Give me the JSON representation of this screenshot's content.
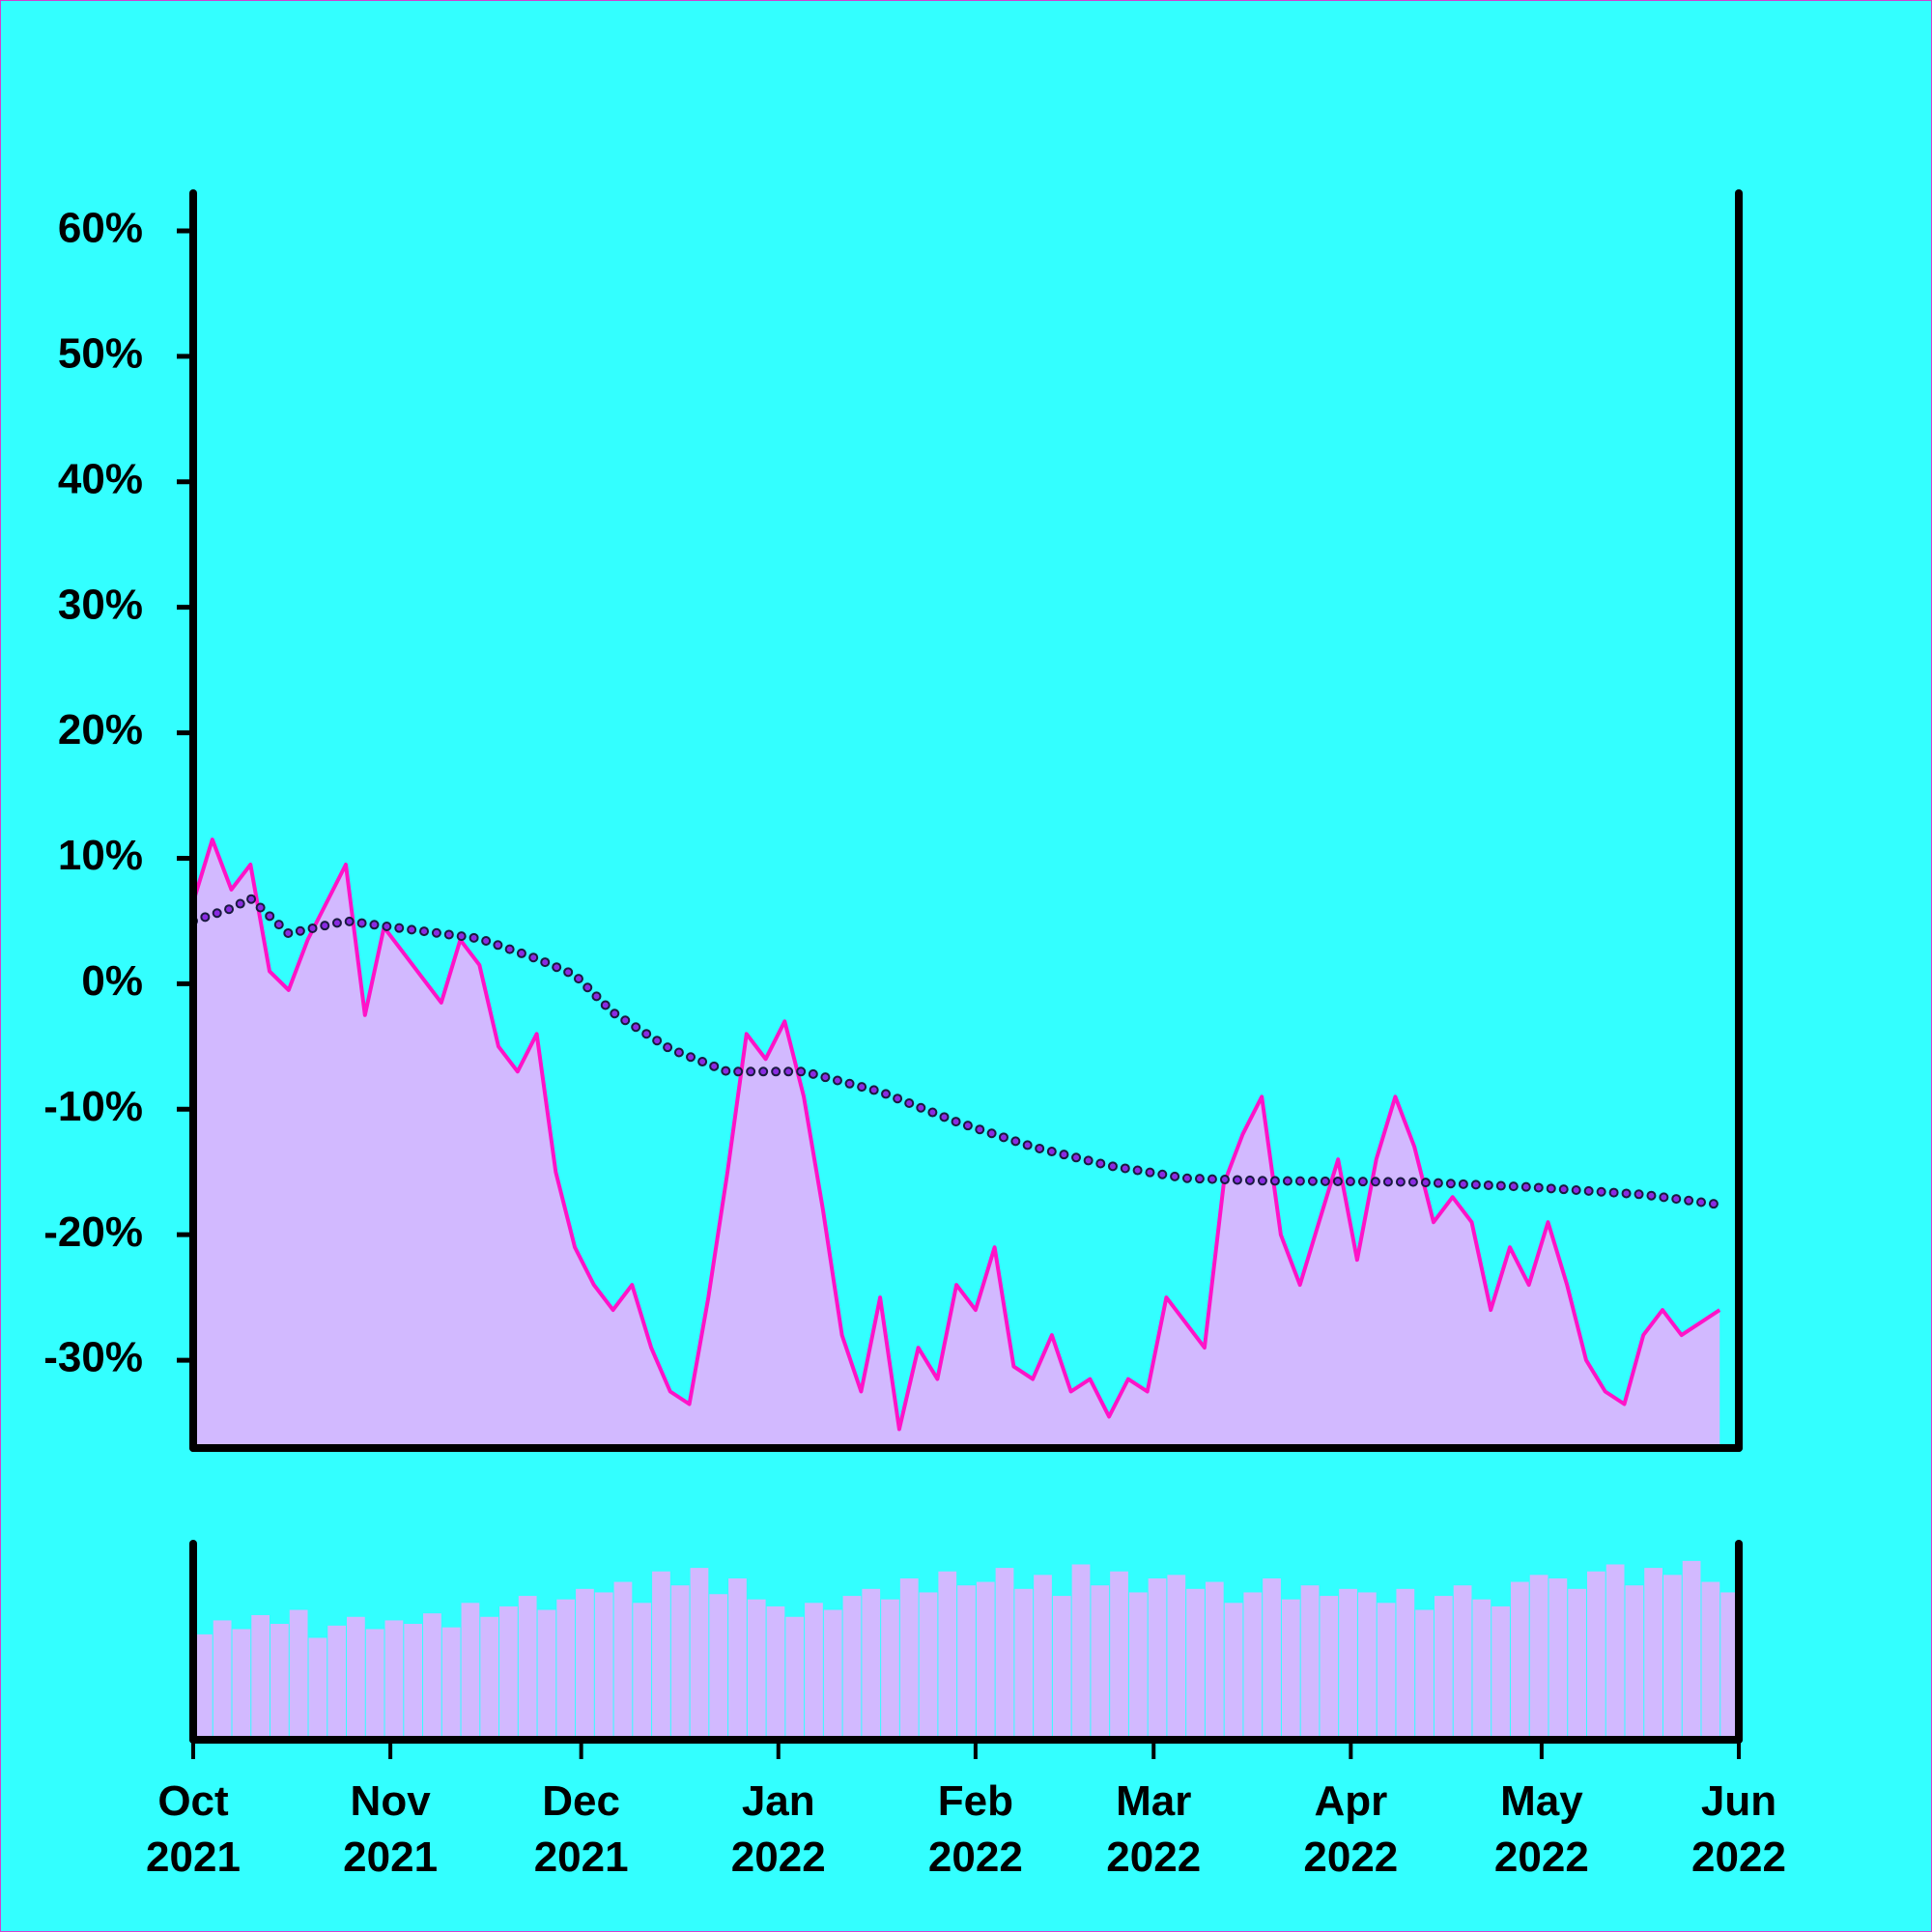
{
  "chart_data": {
    "type": "line",
    "x": [
      0,
      3,
      6,
      9,
      12,
      15,
      18,
      21,
      24,
      27,
      30,
      33,
      36,
      39,
      42,
      45,
      48,
      51,
      54,
      57,
      60,
      63,
      66,
      69,
      72,
      75,
      78,
      81,
      84,
      87,
      90,
      93,
      96,
      99,
      102,
      105,
      108,
      111,
      114,
      117,
      120,
      123,
      126,
      129,
      132,
      135,
      138,
      141,
      144,
      147,
      150,
      153,
      156,
      159,
      162,
      165,
      168,
      171,
      174,
      177,
      180,
      183,
      186,
      189,
      192,
      195,
      198,
      201,
      204,
      207,
      210,
      213,
      216,
      219,
      222,
      225,
      228,
      231,
      234,
      237,
      240
    ],
    "xlim": [
      0,
      243
    ],
    "xticks": [
      {
        "value": 0,
        "label": "Oct\n2021"
      },
      {
        "value": 31,
        "label": "Nov\n2021"
      },
      {
        "value": 61,
        "label": "Dec\n2021"
      },
      {
        "value": 92,
        "label": "Jan\n2022"
      },
      {
        "value": 123,
        "label": "Feb\n2022"
      },
      {
        "value": 151,
        "label": "Mar\n2022"
      },
      {
        "value": 182,
        "label": "Apr\n2022"
      },
      {
        "value": 212,
        "label": "May\n2022"
      },
      {
        "value": 243,
        "label": "Jun\n2022"
      }
    ],
    "ylim": [
      -37,
      63
    ],
    "yticks": [
      {
        "value": -30,
        "label": "-30%"
      },
      {
        "value": -20,
        "label": "-20%"
      },
      {
        "value": -10,
        "label": "-10%"
      },
      {
        "value": 0,
        "label": "0%"
      },
      {
        "value": 10,
        "label": "10%"
      },
      {
        "value": 20,
        "label": "20%"
      },
      {
        "value": 30,
        "label": "30%"
      },
      {
        "value": 40,
        "label": "40%"
      },
      {
        "value": 50,
        "label": "50%"
      },
      {
        "value": 60,
        "label": "60%"
      }
    ],
    "series": [
      {
        "color": "#ff14c8",
        "area_color": "#d2b9ff",
        "values": [
          6.5,
          11.5,
          7.5,
          9.5,
          1,
          -0.5,
          3.5,
          6.5,
          9.5,
          -2.5,
          4.5,
          2.5,
          0.5,
          -1.5,
          3.5,
          1.5,
          -5,
          -7,
          -4,
          -15,
          -21,
          -24,
          -26,
          -24,
          -29,
          -32.5,
          -33.5,
          -25,
          -15,
          -4,
          -6,
          -3,
          -9,
          -18,
          -28,
          -32.5,
          -25,
          -35.5,
          -29,
          -31.5,
          -24,
          -26,
          -21,
          -30.5,
          -31.5,
          -28,
          -32.5,
          -31.5,
          -34.5,
          -31.5,
          -32.5,
          -25,
          -27,
          -29,
          -16,
          -12,
          -9,
          -20,
          -24,
          -19,
          -14,
          -22,
          -14,
          -9,
          -13,
          -19,
          -17,
          -19,
          -26,
          -21,
          -24,
          -19,
          -24,
          -30,
          -32.5,
          -33.5,
          -28,
          -26,
          -28,
          -27,
          -26
        ]
      },
      {
        "color": "#8a2be2",
        "style": "dotted",
        "x": [
          0,
          6,
          9,
          15,
          24,
          30,
          45,
          54,
          60,
          66,
          75,
          84,
          96,
          108,
          120,
          132,
          144,
          156,
          168,
          192,
          210,
          228,
          240
        ],
        "values": [
          5,
          6,
          6.8,
          4,
          5,
          4.6,
          3.6,
          2,
          0.7,
          -2.3,
          -5.2,
          -7,
          -7,
          -8.6,
          -11,
          -13,
          -14.5,
          -15.5,
          -15.7,
          -15.8,
          -16.2,
          -16.8,
          -17.6
        ]
      }
    ],
    "volume": {
      "color": "#d2b9ff",
      "ylim": [
        0,
        100
      ],
      "values": [
        52,
        60,
        55,
        63,
        58,
        66,
        50,
        57,
        62,
        55,
        60,
        58,
        64,
        56,
        70,
        62,
        68,
        74,
        66,
        72,
        78,
        76,
        82,
        70,
        88,
        80,
        90,
        75,
        84,
        72,
        68,
        62,
        70,
        66,
        74,
        78,
        72,
        84,
        76,
        88,
        80,
        82,
        90,
        78,
        86,
        74,
        92,
        80,
        88,
        76,
        84,
        86,
        78,
        82,
        70,
        76,
        84,
        72,
        80,
        74,
        78,
        76,
        70,
        78,
        66,
        74,
        80,
        72,
        68,
        82,
        86,
        84,
        78,
        88,
        92,
        80,
        90,
        86,
        94,
        82,
        76
      ]
    }
  }
}
